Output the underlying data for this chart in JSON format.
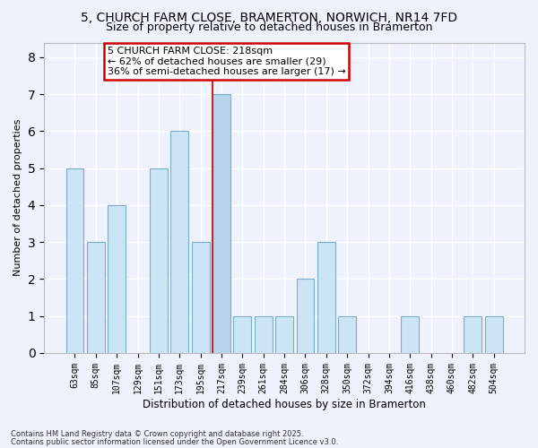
{
  "title_line1": "5, CHURCH FARM CLOSE, BRAMERTON, NORWICH, NR14 7FD",
  "title_line2": "Size of property relative to detached houses in Bramerton",
  "xlabel": "Distribution of detached houses by size in Bramerton",
  "ylabel": "Number of detached properties",
  "bins": [
    "63sqm",
    "85sqm",
    "107sqm",
    "129sqm",
    "151sqm",
    "173sqm",
    "195sqm",
    "217sqm",
    "239sqm",
    "261sqm",
    "284sqm",
    "306sqm",
    "328sqm",
    "350sqm",
    "372sqm",
    "394sqm",
    "416sqm",
    "438sqm",
    "460sqm",
    "482sqm",
    "504sqm"
  ],
  "values": [
    5,
    3,
    4,
    0,
    5,
    6,
    3,
    7,
    1,
    1,
    1,
    2,
    3,
    1,
    0,
    0,
    1,
    0,
    0,
    1,
    1
  ],
  "highlight_bin_index": 7,
  "bar_color": "#cce5f5",
  "highlight_color": "#b8d4eb",
  "bar_edge_color": "#7aadce",
  "highlight_edge_color": "#cc2222",
  "annotation_text": "5 CHURCH FARM CLOSE: 218sqm\n← 62% of detached houses are smaller (29)\n36% of semi-detached houses are larger (17) →",
  "annotation_box_color": "#ffffff",
  "annotation_border_color": "#cc0000",
  "ylim": [
    0,
    8.4
  ],
  "yticks": [
    0,
    1,
    2,
    3,
    4,
    5,
    6,
    7,
    8
  ],
  "footer_line1": "Contains HM Land Registry data © Crown copyright and database right 2025.",
  "footer_line2": "Contains public sector information licensed under the Open Government Licence v3.0.",
  "background_color": "#eef2fc",
  "grid_color": "#ffffff",
  "title_fontsize": 10,
  "subtitle_fontsize": 9,
  "axis_label_fontsize": 8,
  "tick_fontsize": 7,
  "footer_fontsize": 6
}
